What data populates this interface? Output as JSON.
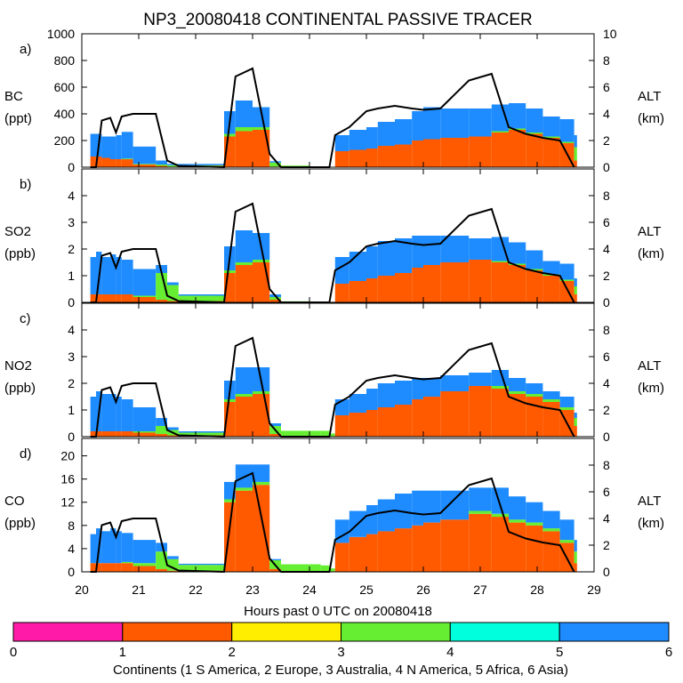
{
  "chart_data": {
    "type": "area",
    "title": "NP3_20080418 CONTINENTAL PASSIVE TRACER",
    "xlabel": "Hours past 0 UTC on 20080418",
    "xlim": [
      20,
      29
    ],
    "x_ticks": [
      "20",
      "21",
      "22",
      "23",
      "24",
      "25",
      "26",
      "27",
      "28",
      "29"
    ],
    "alt_label": "ALT",
    "alt_unit": "(km)",
    "panels": [
      {
        "id": "a",
        "tag": "a)",
        "species": "BC",
        "unit": "(ppt)",
        "ylim": [
          0,
          1000
        ],
        "alt_lim": [
          0,
          10
        ],
        "y_ticks": [
          "0",
          "200",
          "400",
          "600",
          "800",
          "1000"
        ],
        "alt_ticks": [
          "0",
          "2",
          "4",
          "6",
          "8",
          "10"
        ],
        "orange": [
          80,
          80,
          70,
          60,
          60,
          60,
          20,
          10,
          5,
          10,
          230,
          270,
          280,
          5,
          2,
          2,
          1,
          1,
          120,
          130,
          140,
          160,
          170,
          200,
          210,
          220,
          230,
          260,
          280,
          250,
          220,
          180,
          50
        ],
        "green": [
          0,
          0,
          0,
          0,
          0,
          5,
          5,
          10,
          10,
          5,
          20,
          30,
          20,
          30,
          10,
          0,
          0,
          0,
          0,
          0,
          0,
          0,
          0,
          0,
          0,
          0,
          0,
          10,
          10,
          10,
          10,
          10,
          100
        ],
        "blue": [
          170,
          170,
          160,
          170,
          180,
          200,
          130,
          30,
          10,
          10,
          170,
          200,
          150,
          10,
          0,
          0,
          0,
          1,
          120,
          150,
          160,
          180,
          190,
          220,
          240,
          220,
          210,
          200,
          190,
          180,
          150,
          170,
          90
        ],
        "altitude": [
          0,
          0,
          3.5,
          3.7,
          2.6,
          3.8,
          4.0,
          4.0,
          0.5,
          0.1,
          0,
          6.8,
          7.4,
          1.0,
          0,
          0,
          0,
          0,
          2.4,
          3.0,
          4.2,
          4.4,
          4.6,
          4.4,
          4.3,
          4.4,
          6.5,
          7.0,
          3.0,
          2.5,
          2.2,
          2.0,
          0
        ]
      },
      {
        "id": "b",
        "tag": "b)",
        "species": "SO2",
        "unit": "(ppb)",
        "ylim": [
          0,
          5
        ],
        "alt_lim": [
          0,
          10
        ],
        "y_ticks": [
          "0",
          "1",
          "2",
          "3",
          "4"
        ],
        "alt_ticks": [
          "0",
          "2",
          "4",
          "6",
          "8"
        ],
        "orange": [
          0.3,
          0.3,
          0.3,
          0.3,
          0.3,
          0.3,
          0.2,
          0.1,
          0.05,
          0.05,
          1.1,
          1.4,
          1.5,
          0.1,
          0.02,
          0.02,
          0.02,
          0.02,
          0.7,
          0.8,
          0.9,
          1.0,
          1.1,
          1.3,
          1.4,
          1.5,
          1.6,
          1.5,
          1.4,
          1.2,
          1.0,
          0.8,
          0.3
        ],
        "green": [
          0,
          0,
          0,
          0,
          0,
          0,
          0.05,
          1.0,
          0.6,
          0.2,
          0.1,
          0.1,
          0.1,
          0.1,
          0.02,
          0,
          0,
          0,
          0,
          0,
          0,
          0,
          0,
          0,
          0,
          0,
          0,
          0.05,
          0.05,
          0.05,
          0.05,
          0.05,
          0.3
        ],
        "blue": [
          1.4,
          1.6,
          1.4,
          1.5,
          1.4,
          1.3,
          1.0,
          0.3,
          0.1,
          0.05,
          0.9,
          1.2,
          1.0,
          0.1,
          0,
          0,
          0,
          0,
          1.0,
          1.1,
          1.2,
          1.3,
          1.3,
          1.2,
          1.1,
          1.0,
          0.8,
          0.9,
          0.8,
          0.7,
          0.5,
          0.6,
          0.3
        ],
        "altitude": [
          0,
          0,
          3.5,
          3.7,
          2.6,
          3.8,
          4.0,
          4.0,
          0.5,
          0.1,
          0,
          6.8,
          7.4,
          1.0,
          0,
          0,
          0,
          0,
          2.4,
          3.0,
          4.2,
          4.4,
          4.6,
          4.4,
          4.3,
          4.4,
          6.5,
          7.0,
          3.0,
          2.5,
          2.2,
          2.0,
          0
        ]
      },
      {
        "id": "c",
        "tag": "c)",
        "species": "NO2",
        "unit": "(ppb)",
        "ylim": [
          0,
          5
        ],
        "alt_lim": [
          0,
          10
        ],
        "y_ticks": [
          "0",
          "1",
          "2",
          "3",
          "4"
        ],
        "alt_ticks": [
          "0",
          "2",
          "4",
          "6",
          "8"
        ],
        "orange": [
          0.2,
          0.2,
          0.2,
          0.2,
          0.2,
          0.2,
          0.15,
          0.1,
          0.05,
          0.05,
          1.3,
          1.5,
          1.6,
          0.1,
          0.02,
          0.02,
          0.02,
          0.02,
          0.8,
          0.9,
          1.0,
          1.1,
          1.2,
          1.4,
          1.5,
          1.7,
          1.9,
          1.8,
          1.6,
          1.5,
          1.3,
          1.0,
          0.4
        ],
        "green": [
          0,
          0,
          0,
          0,
          0,
          0,
          0.05,
          0.3,
          0.2,
          0.1,
          0.1,
          0.1,
          0.1,
          0.3,
          0.2,
          0.2,
          0.2,
          0.1,
          0,
          0,
          0,
          0,
          0,
          0,
          0,
          0,
          0,
          0.1,
          0.1,
          0.1,
          0.1,
          0.1,
          0.3
        ],
        "blue": [
          1.3,
          1.5,
          1.4,
          1.4,
          1.3,
          1.2,
          0.9,
          0.3,
          0.1,
          0.05,
          0.7,
          1.0,
          0.9,
          0.1,
          0,
          0,
          0,
          0,
          0.6,
          0.7,
          0.8,
          0.9,
          0.9,
          0.8,
          0.7,
          0.6,
          0.5,
          0.6,
          0.5,
          0.4,
          0.3,
          0.4,
          0.2
        ],
        "altitude": [
          0,
          0,
          3.5,
          3.7,
          2.6,
          3.8,
          4.0,
          4.0,
          0.5,
          0.1,
          0,
          6.8,
          7.4,
          1.0,
          0,
          0,
          0,
          0,
          2.4,
          3.0,
          4.2,
          4.4,
          4.6,
          4.4,
          4.3,
          4.4,
          6.5,
          7.0,
          3.0,
          2.5,
          2.2,
          2.0,
          0
        ]
      },
      {
        "id": "d",
        "tag": "d)",
        "species": "CO",
        "unit": "(ppb)",
        "ylim": [
          0,
          23
        ],
        "alt_lim": [
          0,
          10
        ],
        "y_ticks": [
          "0",
          "4",
          "8",
          "12",
          "16",
          "20"
        ],
        "alt_ticks": [
          "0",
          "2",
          "4",
          "6",
          "8"
        ],
        "orange": [
          1.5,
          1.5,
          1.5,
          1.5,
          1.5,
          1.5,
          1.0,
          0.5,
          0.2,
          0.2,
          12,
          14,
          15,
          0.5,
          0.1,
          0.1,
          0.1,
          0.1,
          5,
          6,
          6.5,
          7,
          7.5,
          8,
          8.5,
          9,
          10,
          9.5,
          8.5,
          8,
          7,
          5,
          1.5
        ],
        "green": [
          0,
          0,
          0,
          0,
          0,
          0.2,
          0.5,
          3,
          2,
          1,
          0.5,
          0.5,
          0.5,
          1.5,
          1.2,
          1.2,
          1,
          0.5,
          0,
          0,
          0,
          0,
          0,
          0,
          0,
          0,
          0.5,
          0.5,
          0.5,
          0.5,
          0.5,
          0.5,
          2
        ],
        "blue": [
          5,
          6,
          5.5,
          6,
          5.5,
          5,
          4,
          1.5,
          0.5,
          0.2,
          3,
          4,
          3,
          0.2,
          0,
          0,
          0,
          0,
          4,
          4.5,
          5,
          5.5,
          6,
          6,
          5.5,
          5,
          4,
          4.5,
          4,
          3.5,
          3,
          3.5,
          2
        ],
        "altitude": [
          0,
          0,
          3.5,
          3.7,
          2.6,
          3.8,
          4.0,
          4.0,
          0.5,
          0.1,
          0,
          6.8,
          7.4,
          1.0,
          0,
          0,
          0,
          0,
          2.4,
          3.0,
          4.2,
          4.4,
          4.6,
          4.4,
          4.3,
          4.4,
          6.5,
          7.0,
          3.0,
          2.5,
          2.2,
          2.0,
          0
        ]
      }
    ],
    "x_points": [
      20.15,
      20.25,
      20.35,
      20.5,
      20.6,
      20.7,
      20.9,
      21.3,
      21.5,
      21.7,
      22.5,
      22.7,
      23.0,
      23.3,
      23.5,
      24.0,
      24.2,
      24.35,
      24.45,
      24.7,
      25.0,
      25.2,
      25.5,
      25.8,
      26.0,
      26.3,
      26.8,
      27.2,
      27.5,
      27.8,
      28.1,
      28.4,
      28.65
    ],
    "colors": {
      "1": "#ff5a00",
      "4": "#66ee33",
      "6": "#1e8cff"
    },
    "colorbar": {
      "ticks": [
        "0",
        "1",
        "2",
        "3",
        "4",
        "5",
        "6"
      ],
      "colors": [
        "#ff1aa8",
        "#ff5a00",
        "#ffee00",
        "#66ee33",
        "#00ffdd",
        "#1e8cff"
      ],
      "label": "Continents (1 S America, 2 Europe, 3 Australia, 4 N America, 5 Africa, 6 Asia)"
    }
  }
}
